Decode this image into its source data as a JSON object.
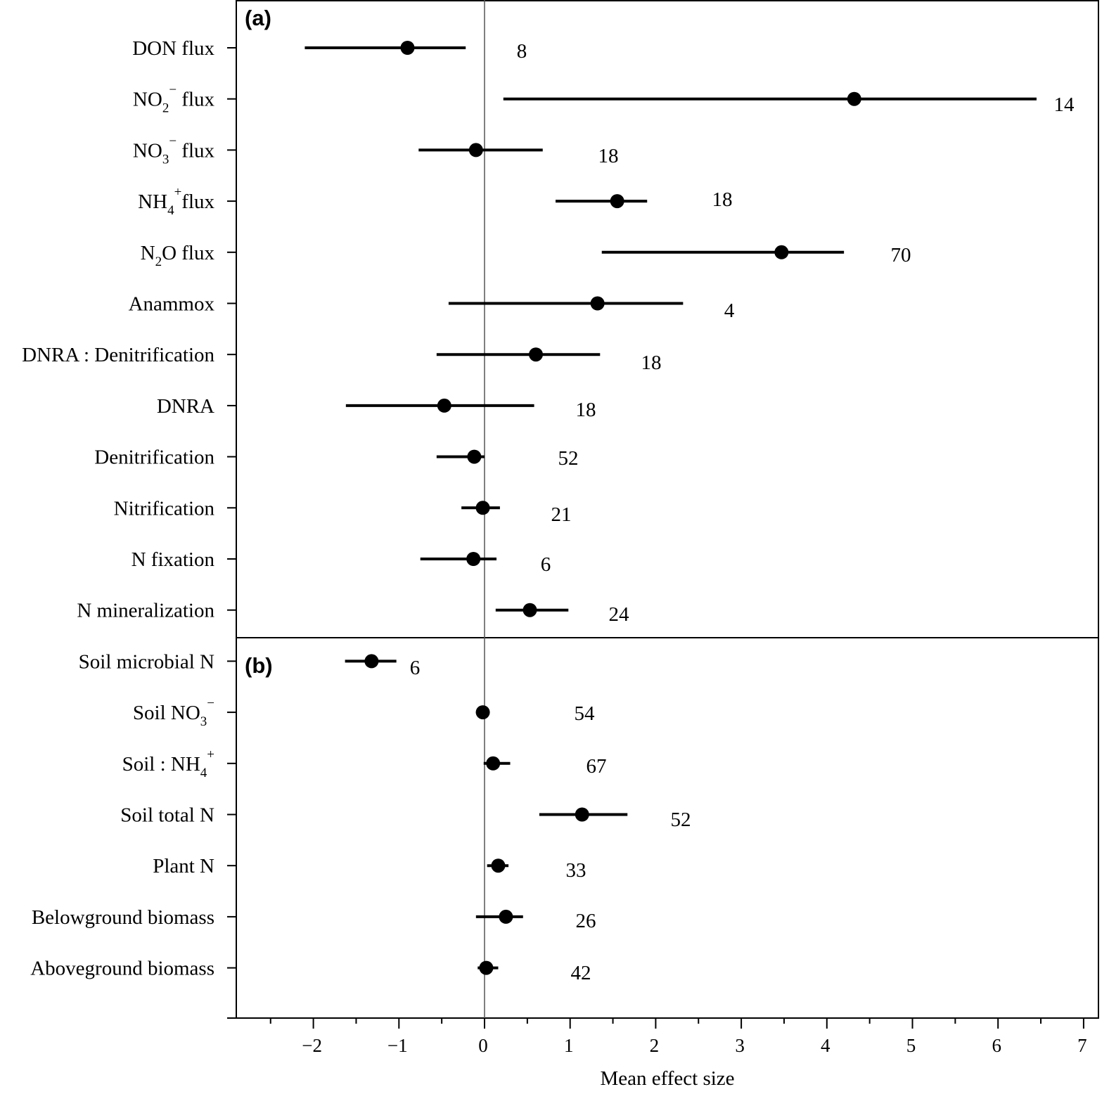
{
  "chart_data": {
    "type": "forest",
    "xlabel": "Mean effect size",
    "xlim": [
      -2.87,
      7.2
    ],
    "xticks": [
      -2,
      -1,
      0,
      1,
      2,
      3,
      4,
      5,
      6,
      7
    ],
    "xtick_labels": [
      "−2",
      "−1",
      "0",
      "1",
      "2",
      "3",
      "4",
      "5",
      "6",
      "7"
    ],
    "reference_line": 0,
    "panels": [
      {
        "label": "(a)",
        "rows": [
          {
            "name": "DON flux",
            "label_parts": [
              {
                "t": "DON flux"
              }
            ],
            "mean": -0.9,
            "lower": -2.1,
            "upper": -0.22,
            "n": "8"
          },
          {
            "name": "NO2− flux",
            "label_parts": [
              {
                "t": "NO"
              },
              {
                "t": "2",
                "sub": true
              },
              {
                "t": "−",
                "sup": true
              },
              {
                "t": " flux"
              }
            ],
            "mean": 4.32,
            "lower": 0.22,
            "upper": 6.45,
            "n": "14"
          },
          {
            "name": "NO3− flux",
            "label_parts": [
              {
                "t": "NO"
              },
              {
                "t": "3",
                "sub": true
              },
              {
                "t": "−",
                "sup": true
              },
              {
                "t": " flux"
              }
            ],
            "mean": -0.1,
            "lower": -0.77,
            "upper": 0.68,
            "n": "18"
          },
          {
            "name": "NH4+ flux",
            "label_parts": [
              {
                "t": "NH"
              },
              {
                "t": "4",
                "sub": true
              },
              {
                "t": "+",
                "sup": true
              },
              {
                "t": "flux"
              }
            ],
            "mean": 1.55,
            "lower": 0.83,
            "upper": 1.9,
            "n": "18"
          },
          {
            "name": "N2O flux",
            "label_parts": [
              {
                "t": "N"
              },
              {
                "t": "2",
                "sub": true
              },
              {
                "t": "O  flux"
              }
            ],
            "mean": 3.47,
            "lower": 1.37,
            "upper": 4.2,
            "n": "70"
          },
          {
            "name": "Anammox",
            "label_parts": [
              {
                "t": "Anammox"
              }
            ],
            "mean": 1.32,
            "lower": -0.42,
            "upper": 2.32,
            "n": "4"
          },
          {
            "name": "DNRA : Denitrification",
            "label_parts": [
              {
                "t": "DNRA : Denitrification"
              }
            ],
            "mean": 0.6,
            "lower": -0.56,
            "upper": 1.35,
            "n": "18"
          },
          {
            "name": "DNRA",
            "label_parts": [
              {
                "t": "DNRA"
              }
            ],
            "mean": -0.47,
            "lower": -1.62,
            "upper": 0.58,
            "n": "18"
          },
          {
            "name": "Denitrification",
            "label_parts": [
              {
                "t": "Denitrification"
              }
            ],
            "mean": -0.12,
            "lower": -0.56,
            "upper": 0.0,
            "n": "52"
          },
          {
            "name": "Nitrification",
            "label_parts": [
              {
                "t": "Nitrification"
              }
            ],
            "mean": -0.02,
            "lower": -0.27,
            "upper": 0.18,
            "n": "21"
          },
          {
            "name": "N fixation",
            "label_parts": [
              {
                "t": "N fixation"
              }
            ],
            "mean": -0.13,
            "lower": -0.75,
            "upper": 0.14,
            "n": "6"
          },
          {
            "name": "N mineralization",
            "label_parts": [
              {
                "t": "N mineralization"
              }
            ],
            "mean": 0.53,
            "lower": 0.13,
            "upper": 0.98,
            "n": "24"
          }
        ]
      },
      {
        "label": "(b)",
        "rows": [
          {
            "name": "Soil microbial N",
            "label_parts": [
              {
                "t": "Soil microbial N"
              }
            ],
            "mean": -1.32,
            "lower": -1.63,
            "upper": -1.03,
            "n": "6"
          },
          {
            "name": "Soil NO3−",
            "label_parts": [
              {
                "t": "Soil  NO"
              },
              {
                "t": "3",
                "sub": true
              },
              {
                "t": "−",
                "sup": true
              }
            ],
            "mean": -0.02,
            "lower": -0.08,
            "upper": 0.03,
            "n": "54"
          },
          {
            "name": "Soil : NH4+",
            "label_parts": [
              {
                "t": "Soil : NH"
              },
              {
                "t": "4",
                "sub": true
              },
              {
                "t": "+",
                "sup": true
              }
            ],
            "mean": 0.1,
            "lower": -0.01,
            "upper": 0.3,
            "n": "67"
          },
          {
            "name": "Soil total N",
            "label_parts": [
              {
                "t": "Soil total N"
              }
            ],
            "mean": 1.14,
            "lower": 0.64,
            "upper": 1.67,
            "n": "52"
          },
          {
            "name": "Plant N",
            "label_parts": [
              {
                "t": "Plant N"
              }
            ],
            "mean": 0.16,
            "lower": 0.03,
            "upper": 0.28,
            "n": "33"
          },
          {
            "name": "Belowground biomass",
            "label_parts": [
              {
                "t": "Belowground biomass"
              }
            ],
            "mean": 0.25,
            "lower": -0.1,
            "upper": 0.45,
            "n": "26"
          },
          {
            "name": "Aboveground biomass",
            "label_parts": [
              {
                "t": "Aboveground biomass"
              }
            ],
            "mean": 0.02,
            "lower": -0.08,
            "upper": 0.16,
            "n": "42"
          }
        ]
      }
    ]
  }
}
